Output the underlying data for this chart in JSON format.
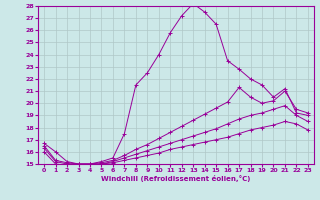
{
  "xlabel": "Windchill (Refroidissement éolien,°C)",
  "xlim": [
    -0.5,
    23.5
  ],
  "ylim": [
    15,
    28
  ],
  "yticks": [
    15,
    16,
    17,
    18,
    19,
    20,
    21,
    22,
    23,
    24,
    25,
    26,
    27,
    28
  ],
  "xticks": [
    0,
    1,
    2,
    3,
    4,
    5,
    6,
    7,
    8,
    9,
    10,
    11,
    12,
    13,
    14,
    15,
    16,
    17,
    18,
    19,
    20,
    21,
    22,
    23
  ],
  "bg_color": "#cce8e8",
  "line_color": "#990099",
  "grid_color": "#b0c8c8",
  "lines": [
    {
      "x": [
        0,
        1,
        2,
        3,
        4,
        5,
        6,
        7,
        8,
        9,
        10,
        11,
        12,
        13,
        14,
        15,
        16,
        17,
        18,
        19,
        20,
        21,
        22,
        23
      ],
      "y": [
        16.7,
        16.0,
        15.2,
        15.0,
        15.0,
        15.2,
        15.5,
        17.5,
        21.5,
        22.5,
        24.0,
        25.8,
        27.2,
        28.2,
        27.5,
        26.5,
        23.5,
        22.8,
        22.0,
        21.5,
        20.5,
        21.2,
        19.2,
        19.0
      ]
    },
    {
      "x": [
        0,
        1,
        2,
        3,
        4,
        5,
        6,
        7,
        8,
        9,
        10,
        11,
        12,
        13,
        14,
        15,
        16,
        17,
        18,
        19,
        20,
        21,
        22,
        23
      ],
      "y": [
        16.5,
        15.3,
        15.1,
        15.0,
        15.0,
        15.1,
        15.3,
        15.7,
        16.2,
        16.6,
        17.1,
        17.6,
        18.1,
        18.6,
        19.1,
        19.6,
        20.1,
        21.3,
        20.5,
        20.0,
        20.2,
        21.0,
        19.5,
        19.2
      ]
    },
    {
      "x": [
        0,
        1,
        2,
        3,
        4,
        5,
        6,
        7,
        8,
        9,
        10,
        11,
        12,
        13,
        14,
        15,
        16,
        17,
        18,
        19,
        20,
        21,
        22,
        23
      ],
      "y": [
        16.3,
        15.2,
        15.0,
        15.0,
        15.0,
        15.0,
        15.2,
        15.5,
        15.8,
        16.1,
        16.4,
        16.7,
        17.0,
        17.3,
        17.6,
        17.9,
        18.3,
        18.7,
        19.0,
        19.2,
        19.5,
        19.8,
        19.0,
        18.5
      ]
    },
    {
      "x": [
        0,
        1,
        2,
        3,
        4,
        5,
        6,
        7,
        8,
        9,
        10,
        11,
        12,
        13,
        14,
        15,
        16,
        17,
        18,
        19,
        20,
        21,
        22,
        23
      ],
      "y": [
        16.0,
        15.0,
        14.9,
        14.8,
        14.9,
        15.0,
        15.1,
        15.3,
        15.5,
        15.7,
        15.9,
        16.2,
        16.4,
        16.6,
        16.8,
        17.0,
        17.2,
        17.5,
        17.8,
        18.0,
        18.2,
        18.5,
        18.3,
        17.8
      ]
    }
  ]
}
